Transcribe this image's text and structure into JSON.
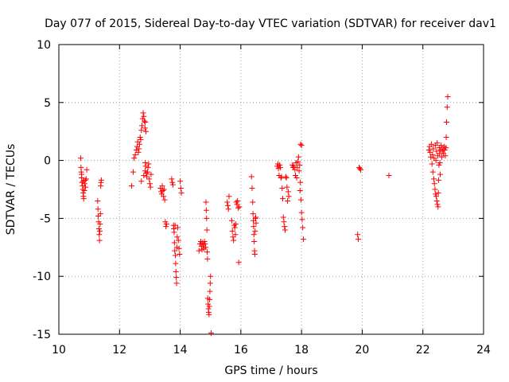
{
  "chart_data": {
    "type": "scatter",
    "title": "Day 077 of 2015, Sidereal Day-to-day VTEC variation (SDTVAR) for receiver dav1",
    "xlabel": "GPS time / hours",
    "ylabel": "SDTVAR / TECUs",
    "xlim": [
      10,
      24
    ],
    "ylim": [
      -15,
      10
    ],
    "xticks": [
      10,
      12,
      14,
      16,
      18,
      20,
      22,
      24
    ],
    "yticks": [
      -15,
      -10,
      -5,
      0,
      5,
      10
    ],
    "xtick_labels": [
      "10",
      "12",
      "14",
      "16",
      "18",
      "20",
      "22",
      "24"
    ],
    "ytick_labels": [
      "-15",
      "-10",
      "-5",
      "0",
      "5",
      "10"
    ],
    "grid": true,
    "marker": "+",
    "color": "#ff0000",
    "series": [
      {
        "name": "SDTVAR",
        "points": [
          [
            10.72,
            0.2
          ],
          [
            10.73,
            -0.6
          ],
          [
            10.74,
            -1.0
          ],
          [
            10.75,
            -1.5
          ],
          [
            10.76,
            -1.9
          ],
          [
            10.78,
            -2.2
          ],
          [
            10.79,
            -2.5
          ],
          [
            10.8,
            -2.8
          ],
          [
            10.81,
            -3.1
          ],
          [
            10.82,
            -3.3
          ],
          [
            10.84,
            -2.6
          ],
          [
            10.85,
            -2.0
          ],
          [
            10.87,
            -1.7
          ],
          [
            10.88,
            -2.3
          ],
          [
            10.9,
            -1.6
          ],
          [
            10.92,
            -0.8
          ],
          [
            10.75,
            -1.2
          ],
          [
            10.8,
            -1.8
          ],
          [
            11.28,
            -3.5
          ],
          [
            11.29,
            -4.2
          ],
          [
            11.3,
            -4.8
          ],
          [
            11.31,
            -5.3
          ],
          [
            11.32,
            -5.9
          ],
          [
            11.33,
            -6.4
          ],
          [
            11.34,
            -6.9
          ],
          [
            11.35,
            -6.1
          ],
          [
            11.36,
            -5.5
          ],
          [
            11.37,
            -4.6
          ],
          [
            11.38,
            -2.2
          ],
          [
            11.39,
            -1.9
          ],
          [
            11.4,
            -1.7
          ],
          [
            12.4,
            -2.2
          ],
          [
            12.45,
            -1.0
          ],
          [
            12.48,
            0.2
          ],
          [
            12.52,
            0.5
          ],
          [
            12.55,
            0.9
          ],
          [
            12.58,
            1.2
          ],
          [
            12.6,
            1.6
          ],
          [
            12.62,
            0.7
          ],
          [
            12.64,
            1.0
          ],
          [
            12.66,
            1.4
          ],
          [
            12.68,
            2.0
          ],
          [
            12.7,
            1.8
          ],
          [
            12.72,
            2.6
          ],
          [
            12.74,
            3.0
          ],
          [
            12.76,
            3.6
          ],
          [
            12.78,
            4.1
          ],
          [
            12.8,
            3.8
          ],
          [
            12.82,
            3.4
          ],
          [
            12.84,
            2.8
          ],
          [
            12.85,
            3.3
          ],
          [
            12.87,
            2.5
          ],
          [
            12.72,
            -1.8
          ],
          [
            12.8,
            -1.3
          ],
          [
            12.84,
            -0.9
          ],
          [
            12.86,
            -0.5
          ],
          [
            12.88,
            -1.1
          ],
          [
            12.9,
            -1.4
          ],
          [
            12.92,
            -1.0
          ],
          [
            12.94,
            -0.6
          ],
          [
            12.96,
            -0.3
          ],
          [
            12.98,
            -1.6
          ],
          [
            13.0,
            -2.0
          ],
          [
            13.02,
            -2.3
          ],
          [
            13.04,
            -1.2
          ],
          [
            12.85,
            -0.2
          ],
          [
            13.35,
            -2.4
          ],
          [
            13.37,
            -2.7
          ],
          [
            13.39,
            -2.9
          ],
          [
            13.41,
            -2.2
          ],
          [
            13.43,
            -2.6
          ],
          [
            13.45,
            -3.1
          ],
          [
            13.47,
            -2.5
          ],
          [
            13.49,
            -3.4
          ],
          [
            13.51,
            -5.3
          ],
          [
            13.53,
            -5.7
          ],
          [
            13.55,
            -5.5
          ],
          [
            13.72,
            -1.6
          ],
          [
            13.74,
            -1.9
          ],
          [
            13.76,
            -2.1
          ],
          [
            13.78,
            -5.6
          ],
          [
            13.8,
            -6.2
          ],
          [
            13.81,
            -7.1
          ],
          [
            13.82,
            -7.8
          ],
          [
            13.84,
            -8.2
          ],
          [
            13.85,
            -8.9
          ],
          [
            13.86,
            -9.6
          ],
          [
            13.87,
            -10.1
          ],
          [
            13.88,
            -10.6
          ],
          [
            13.89,
            -7.5
          ],
          [
            13.9,
            -6.6
          ],
          [
            13.92,
            -5.8
          ],
          [
            13.94,
            -6.9
          ],
          [
            13.96,
            -7.6
          ],
          [
            13.98,
            -8.1
          ],
          [
            14.0,
            -1.8
          ],
          [
            14.02,
            -2.4
          ],
          [
            14.04,
            -2.8
          ],
          [
            13.79,
            -5.9
          ],
          [
            13.83,
            -5.6
          ],
          [
            14.62,
            -7.8
          ],
          [
            14.65,
            -7.2
          ],
          [
            14.68,
            -7.0
          ],
          [
            14.7,
            -7.4
          ],
          [
            14.72,
            -7.7
          ],
          [
            14.74,
            -7.1
          ],
          [
            14.76,
            -7.3
          ],
          [
            14.78,
            -7.6
          ],
          [
            14.8,
            -7.0
          ],
          [
            14.82,
            -7.2
          ],
          [
            14.84,
            -7.5
          ],
          [
            14.85,
            -3.6
          ],
          [
            14.86,
            -4.3
          ],
          [
            14.87,
            -5.0
          ],
          [
            14.88,
            -6.0
          ],
          [
            14.89,
            -7.9
          ],
          [
            14.9,
            -8.5
          ],
          [
            14.91,
            -11.9
          ],
          [
            14.92,
            -12.4
          ],
          [
            14.93,
            -12.8
          ],
          [
            14.94,
            -13.1
          ],
          [
            14.95,
            -13.3
          ],
          [
            14.96,
            -12.6
          ],
          [
            14.97,
            -12.0
          ],
          [
            14.98,
            -11.3
          ],
          [
            14.99,
            -10.6
          ],
          [
            15.0,
            -10.0
          ],
          [
            15.02,
            -14.9
          ],
          [
            15.55,
            -3.6
          ],
          [
            15.57,
            -3.9
          ],
          [
            15.59,
            -4.2
          ],
          [
            15.61,
            -3.1
          ],
          [
            15.7,
            -5.2
          ],
          [
            15.72,
            -6.1
          ],
          [
            15.74,
            -6.6
          ],
          [
            15.76,
            -6.9
          ],
          [
            15.78,
            -5.6
          ],
          [
            15.8,
            -5.8
          ],
          [
            15.82,
            -6.4
          ],
          [
            15.85,
            -3.6
          ],
          [
            15.87,
            -3.8
          ],
          [
            15.89,
            -3.5
          ],
          [
            15.91,
            -4.1
          ],
          [
            15.93,
            -8.8
          ],
          [
            15.95,
            -4.0
          ],
          [
            15.83,
            -5.5
          ],
          [
            16.35,
            -1.4
          ],
          [
            16.37,
            -2.4
          ],
          [
            16.39,
            -3.6
          ],
          [
            16.4,
            -4.6
          ],
          [
            16.41,
            -5.2
          ],
          [
            16.42,
            -5.7
          ],
          [
            16.43,
            -6.4
          ],
          [
            16.44,
            -7.0
          ],
          [
            16.45,
            -7.8
          ],
          [
            16.46,
            -8.1
          ],
          [
            16.47,
            -6.1
          ],
          [
            16.48,
            -5.0
          ],
          [
            16.49,
            -4.9
          ],
          [
            16.5,
            -5.4
          ],
          [
            17.2,
            -0.5
          ],
          [
            17.22,
            -0.3
          ],
          [
            17.24,
            -0.7
          ],
          [
            17.26,
            -1.3
          ],
          [
            17.28,
            -0.4
          ],
          [
            17.3,
            -0.6
          ],
          [
            17.32,
            -1.5
          ],
          [
            17.34,
            -1.4
          ],
          [
            17.36,
            -2.4
          ],
          [
            17.38,
            -3.3
          ],
          [
            17.4,
            -4.9
          ],
          [
            17.42,
            -5.3
          ],
          [
            17.44,
            -5.7
          ],
          [
            17.46,
            -6.0
          ],
          [
            17.48,
            -1.4
          ],
          [
            17.5,
            -1.5
          ],
          [
            17.52,
            -2.3
          ],
          [
            17.54,
            -3.5
          ],
          [
            17.56,
            -2.7
          ],
          [
            17.58,
            -3.1
          ],
          [
            17.7,
            -0.4
          ],
          [
            17.72,
            -0.6
          ],
          [
            17.74,
            -0.5
          ],
          [
            17.78,
            -0.8
          ],
          [
            17.8,
            -1.3
          ],
          [
            17.82,
            -0.2
          ],
          [
            17.84,
            -1.5
          ],
          [
            17.86,
            -0.6
          ],
          [
            17.88,
            -0.1
          ],
          [
            17.9,
            0.3
          ],
          [
            17.92,
            -0.9
          ],
          [
            17.94,
            -0.4
          ],
          [
            17.96,
            -1.9
          ],
          [
            17.98,
            -3.4
          ],
          [
            18.0,
            -4.5
          ],
          [
            18.02,
            -5.1
          ],
          [
            18.04,
            -5.8
          ],
          [
            18.06,
            -6.8
          ],
          [
            17.97,
            1.4
          ],
          [
            18.0,
            1.3
          ],
          [
            17.95,
            -2.6
          ],
          [
            19.85,
            -6.4
          ],
          [
            19.87,
            -6.8
          ],
          [
            19.9,
            -0.6
          ],
          [
            19.92,
            -0.7
          ],
          [
            19.95,
            -0.8
          ],
          [
            20.88,
            -1.3
          ],
          [
            22.2,
            0.9
          ],
          [
            22.22,
            1.2
          ],
          [
            22.24,
            0.7
          ],
          [
            22.26,
            0.3
          ],
          [
            22.28,
            1.4
          ],
          [
            22.3,
            -0.3
          ],
          [
            22.32,
            0.5
          ],
          [
            22.33,
            -1.0
          ],
          [
            22.34,
            1.0
          ],
          [
            22.36,
            -1.6
          ],
          [
            22.37,
            0.2
          ],
          [
            22.38,
            -2.0
          ],
          [
            22.4,
            -2.5
          ],
          [
            22.41,
            1.3
          ],
          [
            22.42,
            -2.9
          ],
          [
            22.43,
            0.0
          ],
          [
            22.44,
            -3.1
          ],
          [
            22.45,
            0.8
          ],
          [
            22.46,
            -3.5
          ],
          [
            22.47,
            1.5
          ],
          [
            22.48,
            -3.8
          ],
          [
            22.49,
            0.4
          ],
          [
            22.5,
            -4.0
          ],
          [
            22.51,
            -2.8
          ],
          [
            22.52,
            -1.7
          ],
          [
            22.53,
            -0.4
          ],
          [
            22.54,
            1.1
          ],
          [
            22.55,
            0.6
          ],
          [
            22.56,
            -0.2
          ],
          [
            22.57,
            -1.2
          ],
          [
            22.58,
            0.9
          ],
          [
            22.6,
            1.3
          ],
          [
            22.62,
            0.3
          ],
          [
            22.64,
            0.8
          ],
          [
            22.66,
            1.0
          ],
          [
            22.68,
            0.6
          ],
          [
            22.7,
            1.2
          ],
          [
            22.72,
            0.9
          ],
          [
            22.74,
            0.4
          ],
          [
            22.76,
            1.1
          ],
          [
            22.78,
            3.3
          ],
          [
            22.8,
            4.6
          ],
          [
            22.82,
            5.5
          ],
          [
            22.77,
            2.0
          ]
        ]
      }
    ]
  }
}
